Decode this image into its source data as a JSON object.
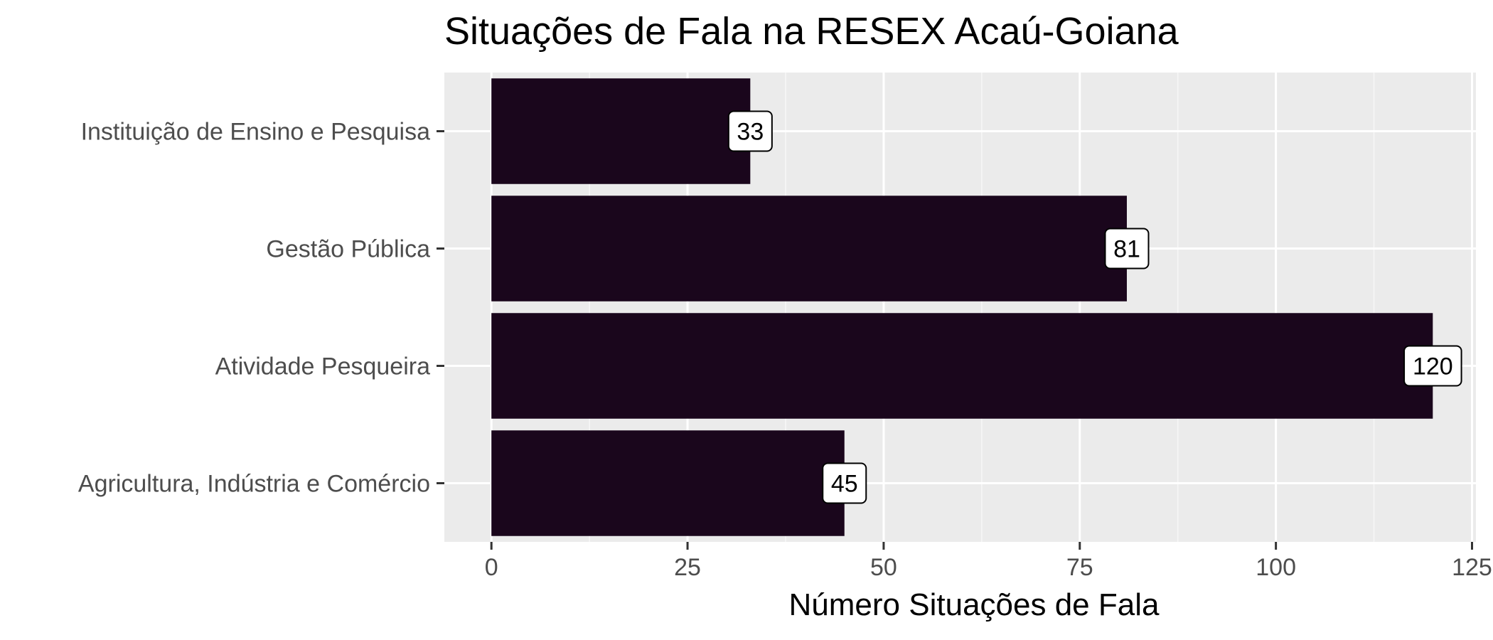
{
  "chart_data": {
    "type": "bar",
    "orientation": "horizontal",
    "title": "Situações de Fala na RESEX Acaú-Goiana",
    "xlabel": "Número Situações de Fala",
    "ylabel": "",
    "categories": [
      "Agricultura, Indústria e Comércio",
      "Atividade Pesqueira",
      "Gestão Pública",
      "Instituição de Ensino e Pesquisa"
    ],
    "values": [
      45,
      120,
      81,
      33
    ],
    "data_labels": [
      "45",
      "120",
      "81",
      "33"
    ],
    "xlim": [
      -6,
      125.5
    ],
    "x_ticks": [
      0,
      25,
      50,
      75,
      100,
      125
    ],
    "x_tick_labels": [
      "0",
      "25",
      "50",
      "75",
      "100",
      "125"
    ],
    "grid": true,
    "legend": "none",
    "colors": {
      "bar": "#1a061c",
      "panel": "#ebebeb",
      "grid_major": "#ffffff",
      "grid_minor": "#f7f7f7",
      "label_fill": "#ffffff",
      "label_border": "#000000"
    }
  }
}
